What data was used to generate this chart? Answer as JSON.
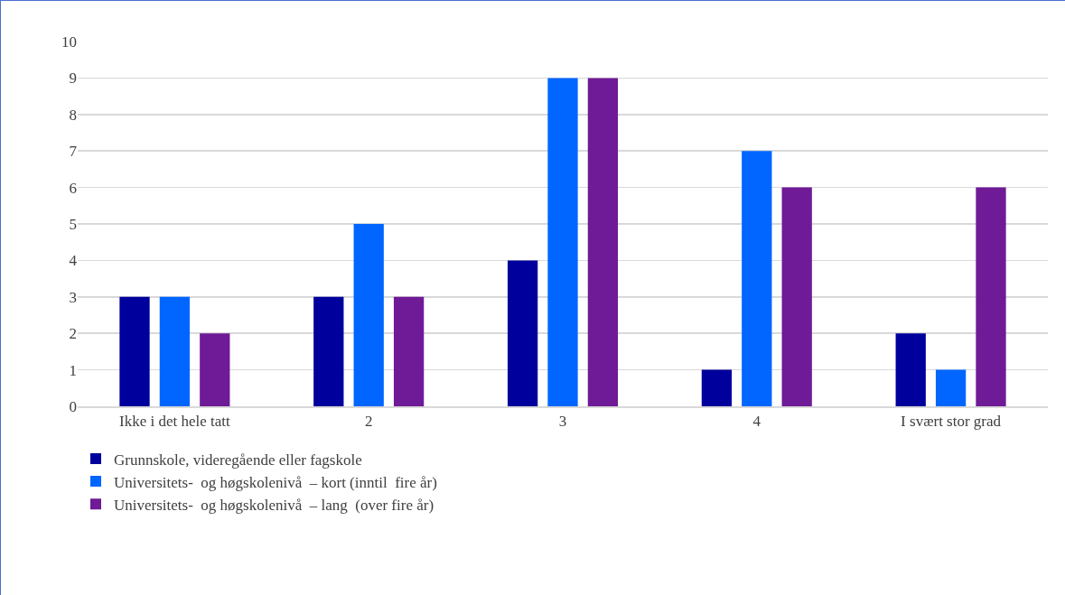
{
  "chart_data": {
    "type": "bar",
    "categories": [
      "Ikke i det hele tatt",
      "2",
      "3",
      "4",
      "I svært stor grad"
    ],
    "series": [
      {
        "name": "Grunnskole, videregående eller fagskole",
        "color": "#00009c",
        "values": [
          3,
          3,
          4,
          1,
          2
        ]
      },
      {
        "name": "Universitets-  og høgskolenivå  – kort (inntil  fire år)",
        "color": "#0066ff",
        "values": [
          3,
          5,
          9,
          7,
          1
        ]
      },
      {
        "name": "Universitets-  og høgskolenivå  – lang  (over fire år)",
        "color": "#6f1a96",
        "values": [
          2,
          3,
          9,
          6,
          6
        ]
      }
    ],
    "ylim": [
      0,
      10
    ],
    "yticks": [
      0,
      1,
      2,
      3,
      4,
      5,
      6,
      7,
      8,
      9,
      10
    ],
    "grid": "y",
    "legend": "bottom"
  }
}
